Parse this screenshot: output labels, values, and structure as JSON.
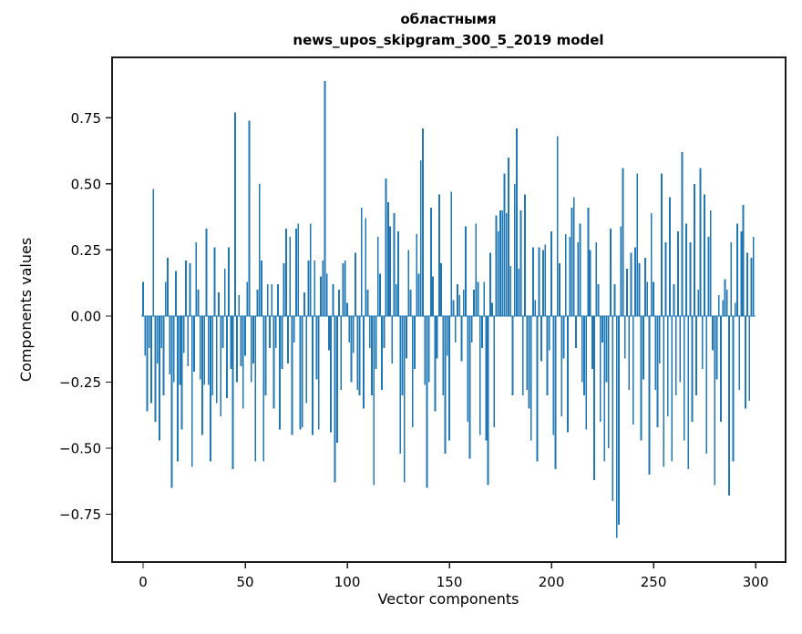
{
  "figure": {
    "background": "#ffffff",
    "spine_color": "#1a1a1a"
  },
  "chart_data": {
    "type": "bar",
    "title_line1": "областнымя",
    "title_line2": "news_upos_skipgram_300_5_2019 model",
    "xlabel": "Vector components",
    "ylabel": "Components values",
    "bar_color": "#1f77b4",
    "grid": false,
    "legend": null,
    "x_start": 0,
    "x_ticks": [
      0,
      50,
      100,
      150,
      200,
      250,
      300
    ],
    "y_ticks": [
      0.75,
      0.5,
      0.25,
      0.0,
      -0.25,
      -0.5,
      -0.75
    ],
    "xlim": [
      -15.2,
      314.7
    ],
    "ylim": [
      -0.931,
      0.979
    ],
    "values": [
      0.13,
      -0.15,
      -0.36,
      -0.12,
      -0.33,
      0.48,
      -0.4,
      -0.18,
      -0.47,
      -0.12,
      -0.3,
      0.13,
      0.22,
      -0.22,
      -0.65,
      -0.25,
      0.17,
      -0.55,
      -0.26,
      -0.43,
      -0.14,
      0.21,
      -0.19,
      0.2,
      -0.57,
      -0.21,
      0.28,
      0.1,
      -0.24,
      -0.45,
      -0.26,
      0.33,
      -0.26,
      -0.55,
      -0.3,
      0.26,
      -0.33,
      0.09,
      -0.38,
      -0.12,
      0.18,
      -0.31,
      0.26,
      -0.2,
      -0.58,
      0.77,
      -0.25,
      0.08,
      -0.19,
      -0.35,
      -0.15,
      0.13,
      0.74,
      -0.25,
      -0.18,
      -0.55,
      0.1,
      0.5,
      0.21,
      -0.55,
      -0.3,
      0.12,
      -0.12,
      0.12,
      -0.35,
      -0.12,
      0.12,
      -0.43,
      -0.2,
      0.2,
      0.33,
      -0.18,
      0.3,
      -0.45,
      -0.1,
      0.33,
      0.35,
      -0.43,
      -0.42,
      0.09,
      -0.33,
      0.21,
      0.35,
      -0.45,
      0.21,
      -0.24,
      -0.43,
      0.15,
      0.21,
      0.89,
      0.16,
      -0.13,
      -0.44,
      0.12,
      -0.63,
      -0.48,
      0.1,
      -0.28,
      0.2,
      0.21,
      0.05,
      -0.1,
      -0.25,
      -0.14,
      0.24,
      -0.28,
      -0.3,
      0.41,
      -0.35,
      0.37,
      0.1,
      -0.12,
      -0.3,
      -0.64,
      -0.2,
      0.3,
      0.16,
      -0.28,
      -0.12,
      0.52,
      0.43,
      0.34,
      -0.18,
      0.39,
      0.12,
      0.32,
      -0.52,
      -0.3,
      -0.63,
      -0.16,
      0.25,
      0.1,
      -0.42,
      -0.2,
      0.31,
      0.16,
      0.59,
      0.71,
      -0.26,
      -0.65,
      -0.25,
      0.41,
      0.15,
      -0.36,
      -0.16,
      0.46,
      0.2,
      -0.3,
      -0.52,
      -0.15,
      -0.47,
      0.47,
      0.06,
      -0.1,
      0.12,
      0.08,
      -0.17,
      0.1,
      0.34,
      -0.4,
      -0.54,
      -0.1,
      0.1,
      0.35,
      0.13,
      -0.45,
      -0.12,
      0.13,
      -0.47,
      -0.64,
      0.24,
      0.05,
      -0.42,
      0.38,
      0.32,
      0.4,
      0.4,
      0.54,
      0.39,
      0.6,
      0.19,
      -0.3,
      0.5,
      0.71,
      0.18,
      0.4,
      -0.3,
      0.46,
      -0.28,
      -0.35,
      -0.47,
      0.26,
      0.06,
      -0.55,
      0.26,
      -0.17,
      0.25,
      0.27,
      -0.3,
      -0.13,
      0.32,
      -0.45,
      -0.58,
      0.68,
      0.2,
      -0.38,
      -0.16,
      0.31,
      -0.44,
      0.3,
      0.41,
      0.45,
      -0.12,
      0.28,
      0.35,
      -0.25,
      -0.3,
      -0.43,
      0.41,
      0.25,
      -0.2,
      -0.62,
      0.28,
      0.12,
      -0.4,
      -0.1,
      -0.55,
      -0.25,
      -0.5,
      0.33,
      -0.7,
      0.12,
      -0.84,
      -0.79,
      0.34,
      0.56,
      -0.16,
      0.18,
      -0.28,
      0.24,
      -0.41,
      0.26,
      0.54,
      0.2,
      -0.47,
      -0.24,
      0.22,
      0.13,
      -0.6,
      0.39,
      0.13,
      -0.28,
      -0.42,
      -0.18,
      0.54,
      -0.57,
      0.28,
      -0.38,
      0.45,
      -0.55,
      0.12,
      -0.3,
      0.32,
      -0.25,
      0.62,
      -0.47,
      0.35,
      -0.58,
      0.28,
      -0.4,
      0.5,
      -0.3,
      0.1,
      0.56,
      -0.2,
      0.46,
      -0.52,
      0.3,
      0.4,
      -0.13,
      -0.64,
      -0.24,
      0.08,
      -0.4,
      0.06,
      0.14,
      0.1,
      -0.68,
      0.28,
      -0.55,
      0.05,
      0.35,
      -0.28,
      0.32,
      0.42,
      -0.35,
      0.24,
      -0.32,
      0.22,
      0.3
    ]
  }
}
